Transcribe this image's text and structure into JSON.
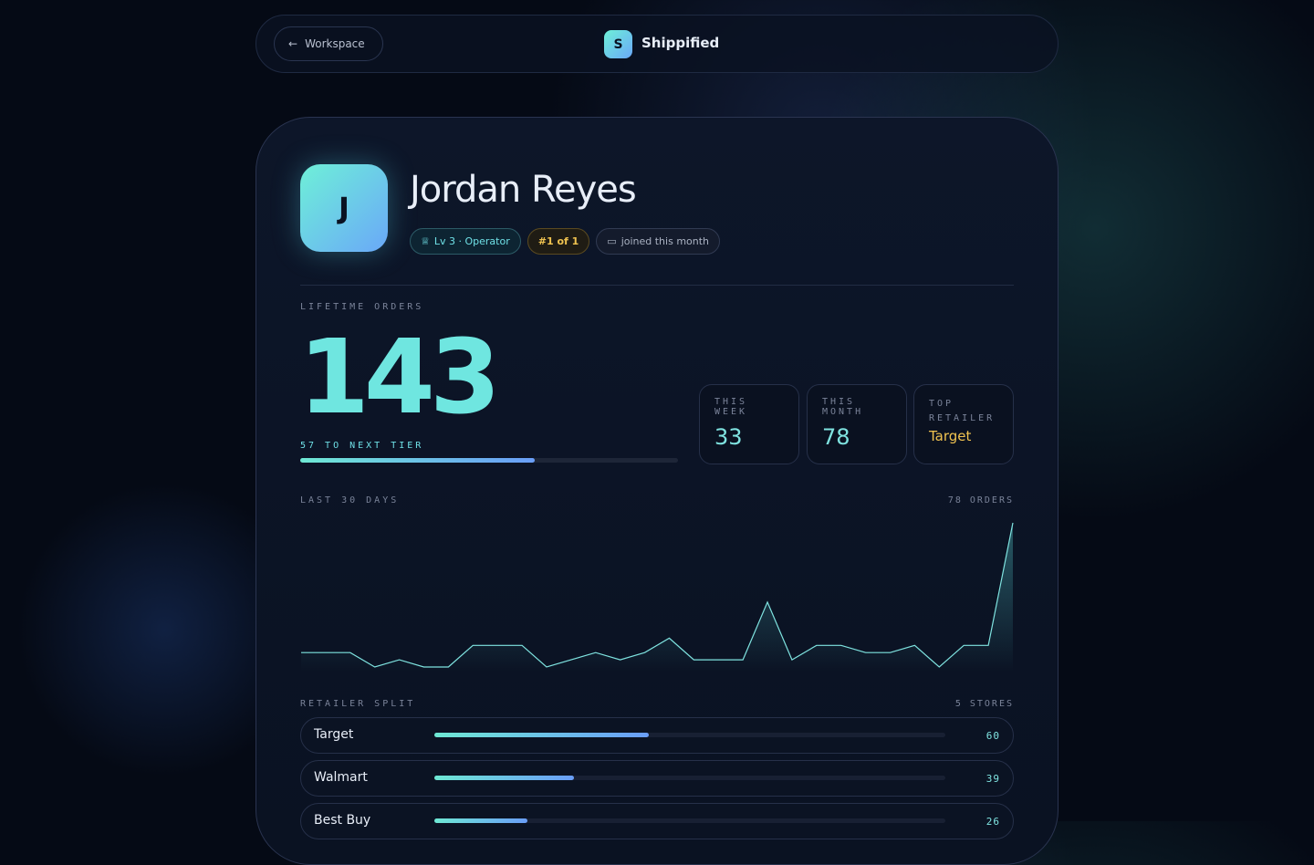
{
  "nav": {
    "back": "Workspace",
    "brand_initial": "S",
    "brand": "Shippified"
  },
  "profile": {
    "initial": "J",
    "name": "Jordan Reyes",
    "badges": [
      "Lv 3 · Operator",
      "#1 of 1",
      "joined this month"
    ]
  },
  "lifetime": {
    "label": "LIFETIME ORDERS",
    "value": 143,
    "next_tier": "57 TO NEXT TIER",
    "progress": 0.62
  },
  "stats": [
    {
      "label": "THIS WEEK",
      "value": 33
    },
    {
      "label": "THIS MONTH",
      "value": 78
    },
    {
      "label": "TOP RETAILER",
      "value": "Target"
    }
  ],
  "chart_data": {
    "type": "line",
    "title": "LAST 30 DAYS",
    "subtitle": "78 ORDERS",
    "values": [
      2,
      2,
      2,
      0,
      1,
      0,
      0,
      3,
      3,
      3,
      0,
      1,
      2,
      1,
      2,
      4,
      1,
      1,
      1,
      9,
      1,
      3,
      3,
      2,
      2,
      3,
      0,
      3,
      3,
      20
    ],
    "ylim": [
      0,
      20
    ],
    "color": "#7fe3e0"
  },
  "retailers": {
    "title": "RETAILER SPLIT",
    "count": "5 STORES",
    "rows": [
      {
        "name": "Target",
        "value": 60
      },
      {
        "name": "Walmart",
        "value": 39
      },
      {
        "name": "Best Buy",
        "value": 26
      }
    ]
  }
}
